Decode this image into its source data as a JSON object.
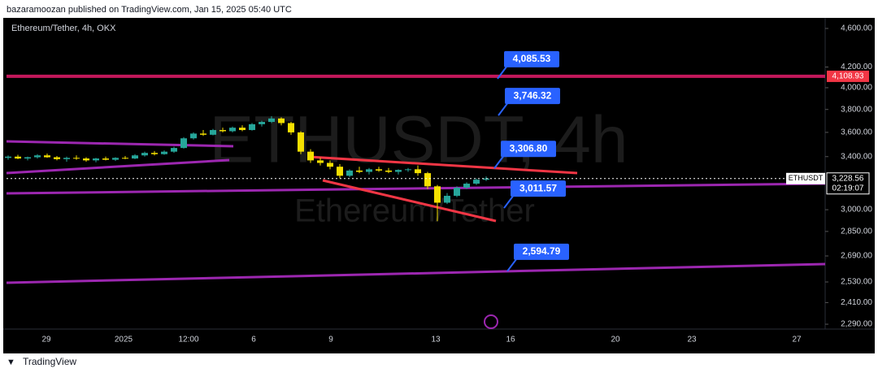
{
  "header": {
    "publisher": "bazaramoozan published on TradingView.com, Jan 15, 2025 05:40 UTC"
  },
  "footer": {
    "brand": "TradingView"
  },
  "chart_data": {
    "type": "candlestick",
    "title": "Ethereum/Tether, 4h, OKX",
    "watermark": "ETHUSDT, 4h",
    "watermark_sub": "Ethereum/Tether",
    "log": true,
    "ylim": [
      2264,
      4716
    ],
    "yticks": [
      {
        "value": 4600,
        "label": "4,600.00"
      },
      {
        "value": 4200,
        "label": "4,200.00"
      },
      {
        "value": 4000,
        "label": "4,000.00"
      },
      {
        "value": 3800,
        "label": "3,800.00"
      },
      {
        "value": 3600,
        "label": "3,600.00"
      },
      {
        "value": 3400,
        "label": "3,400.00"
      },
      {
        "value": 3000,
        "label": "3,000.00"
      },
      {
        "value": 2850,
        "label": "2,850.00"
      },
      {
        "value": 2690,
        "label": "2,690.00"
      },
      {
        "value": 2530,
        "label": "2,530.00"
      },
      {
        "value": 2410,
        "label": "2,410.00"
      },
      {
        "value": 2290,
        "label": "2,290.00"
      }
    ],
    "xticks": [
      "29",
      "2025",
      "12:00",
      "6",
      "9",
      "13",
      "16",
      "20",
      "23",
      "27"
    ],
    "up_color": "#26a69a",
    "down_color": "#f5e000",
    "level": {
      "value": 4108.93,
      "label": "4,108.93",
      "color": "#c2185b"
    },
    "last": {
      "symbol": "ETHUSDT",
      "value": 3228.56,
      "label": "3,228.56",
      "countdown": "02:19:07"
    },
    "annotations": [
      {
        "value": 4085.53,
        "label": "4,085.53"
      },
      {
        "value": 3746.32,
        "label": "3,746.32"
      },
      {
        "value": 3306.8,
        "label": "3,306.80"
      },
      {
        "value": 3011.57,
        "label": "3,011.57"
      },
      {
        "value": 2594.79,
        "label": "2,594.79"
      }
    ],
    "candles": [
      [
        3390,
        3410,
        3375,
        3400
      ],
      [
        3400,
        3415,
        3380,
        3385
      ],
      [
        3385,
        3400,
        3370,
        3395
      ],
      [
        3395,
        3420,
        3385,
        3410
      ],
      [
        3410,
        3425,
        3390,
        3395
      ],
      [
        3395,
        3405,
        3370,
        3380
      ],
      [
        3380,
        3400,
        3360,
        3390
      ],
      [
        3390,
        3410,
        3375,
        3385
      ],
      [
        3385,
        3395,
        3360,
        3370
      ],
      [
        3370,
        3390,
        3355,
        3385
      ],
      [
        3385,
        3400,
        3370,
        3375
      ],
      [
        3375,
        3395,
        3365,
        3390
      ],
      [
        3390,
        3405,
        3380,
        3385
      ],
      [
        3385,
        3420,
        3380,
        3410
      ],
      [
        3410,
        3440,
        3400,
        3430
      ],
      [
        3430,
        3445,
        3410,
        3420
      ],
      [
        3420,
        3450,
        3415,
        3440
      ],
      [
        3440,
        3480,
        3430,
        3470
      ],
      [
        3470,
        3560,
        3465,
        3550
      ],
      [
        3550,
        3600,
        3540,
        3590
      ],
      [
        3590,
        3620,
        3570,
        3580
      ],
      [
        3580,
        3630,
        3575,
        3620
      ],
      [
        3620,
        3640,
        3600,
        3610
      ],
      [
        3610,
        3650,
        3600,
        3640
      ],
      [
        3640,
        3660,
        3610,
        3620
      ],
      [
        3620,
        3680,
        3615,
        3670
      ],
      [
        3670,
        3700,
        3650,
        3690
      ],
      [
        3690,
        3740,
        3680,
        3720
      ],
      [
        3720,
        3730,
        3660,
        3680
      ],
      [
        3680,
        3690,
        3580,
        3600
      ],
      [
        3600,
        3610,
        3420,
        3440
      ],
      [
        3440,
        3460,
        3350,
        3370
      ],
      [
        3370,
        3390,
        3330,
        3350
      ],
      [
        3350,
        3370,
        3300,
        3320
      ],
      [
        3320,
        3340,
        3230,
        3250
      ],
      [
        3250,
        3300,
        3240,
        3290
      ],
      [
        3290,
        3320,
        3270,
        3280
      ],
      [
        3280,
        3310,
        3260,
        3300
      ],
      [
        3300,
        3320,
        3280,
        3290
      ],
      [
        3290,
        3310,
        3270,
        3280
      ],
      [
        3280,
        3300,
        3260,
        3295
      ],
      [
        3295,
        3310,
        3280,
        3300
      ],
      [
        3300,
        3330,
        3250,
        3270
      ],
      [
        3270,
        3280,
        3150,
        3170
      ],
      [
        3170,
        3180,
        2920,
        3050
      ],
      [
        3050,
        3120,
        3040,
        3100
      ],
      [
        3100,
        3170,
        3090,
        3160
      ],
      [
        3160,
        3200,
        3150,
        3190
      ],
      [
        3190,
        3230,
        3180,
        3220
      ],
      [
        3220,
        3245,
        3210,
        3229
      ]
    ]
  }
}
